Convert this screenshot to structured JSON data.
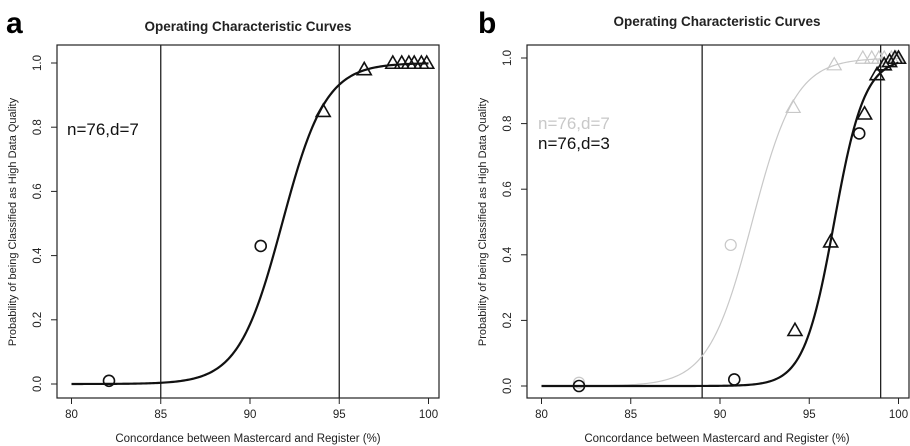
{
  "chart_data": [
    {
      "panel_label": "a",
      "type": "line",
      "title": "Operating Characteristic Curves",
      "xlabel": "Concordance between Mastercard and Register (%)",
      "ylabel": "Probability of being Classified as High Data Quality",
      "xlim": [
        80,
        100
      ],
      "ylim": [
        0,
        1
      ],
      "xticks": [
        "80",
        "85",
        "90",
        "95",
        "100"
      ],
      "yticks": [
        "0.0",
        "0.2",
        "0.4",
        "0.6",
        "0.8",
        "1.0"
      ],
      "vlines": [
        85,
        95
      ],
      "grid": false,
      "legend_text": [
        "n=76,d=7"
      ],
      "series": [
        {
          "color": "#111111",
          "curve": {
            "midpoint": 91.8,
            "scale": 1.22
          },
          "circle_points": [
            {
              "x": 82.1,
              "y": 0.01
            },
            {
              "x": 90.6,
              "y": 0.43
            }
          ],
          "triangle_points": [
            {
              "x": 94.1,
              "y": 0.85
            },
            {
              "x": 96.4,
              "y": 0.98
            },
            {
              "x": 98.0,
              "y": 1.0
            },
            {
              "x": 98.5,
              "y": 1.0
            },
            {
              "x": 98.9,
              "y": 1.0
            },
            {
              "x": 99.2,
              "y": 1.0
            },
            {
              "x": 99.6,
              "y": 1.0
            },
            {
              "x": 99.9,
              "y": 1.0
            }
          ]
        }
      ]
    },
    {
      "panel_label": "b",
      "type": "line",
      "title": "Operating Characteristic Curves",
      "xlabel": "Concordance between Mastercard and Register (%)",
      "ylabel": "Probability of being Classified as High Data Quality",
      "xlim": [
        80,
        100
      ],
      "ylim": [
        0,
        1
      ],
      "xticks": [
        "80",
        "85",
        "90",
        "95",
        "100"
      ],
      "yticks": [
        "0.0",
        "0.2",
        "0.4",
        "0.6",
        "0.8",
        "1.0"
      ],
      "vlines": [
        89,
        99
      ],
      "grid": false,
      "legend_text": [
        "n=76,d=7",
        "n=76,d=3"
      ],
      "series": [
        {
          "color": "#c8c8c8",
          "curve": {
            "midpoint": 91.8,
            "scale": 1.22
          },
          "circle_points": [
            {
              "x": 82.1,
              "y": 0.01
            },
            {
              "x": 90.6,
              "y": 0.43
            }
          ],
          "triangle_points": [
            {
              "x": 94.1,
              "y": 0.85
            },
            {
              "x": 96.4,
              "y": 0.98
            },
            {
              "x": 98.0,
              "y": 1.0
            },
            {
              "x": 98.5,
              "y": 1.0
            },
            {
              "x": 98.9,
              "y": 1.0
            },
            {
              "x": 99.2,
              "y": 1.0
            },
            {
              "x": 99.6,
              "y": 1.0
            },
            {
              "x": 99.9,
              "y": 1.0
            }
          ]
        },
        {
          "color": "#111111",
          "curve": {
            "midpoint": 96.4,
            "scale": 0.85
          },
          "circle_points": [
            {
              "x": 82.1,
              "y": 0.0
            },
            {
              "x": 90.8,
              "y": 0.02
            },
            {
              "x": 97.8,
              "y": 0.77
            }
          ],
          "triangle_points": [
            {
              "x": 94.2,
              "y": 0.17
            },
            {
              "x": 96.2,
              "y": 0.44
            },
            {
              "x": 98.1,
              "y": 0.83
            },
            {
              "x": 98.8,
              "y": 0.95
            },
            {
              "x": 99.2,
              "y": 0.98
            },
            {
              "x": 99.5,
              "y": 0.99
            },
            {
              "x": 99.8,
              "y": 1.0
            },
            {
              "x": 100.0,
              "y": 1.0
            }
          ]
        }
      ]
    }
  ]
}
